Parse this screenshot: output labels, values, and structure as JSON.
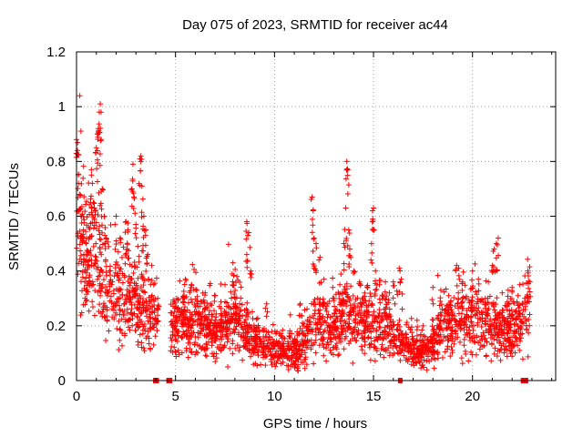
{
  "chart_data": {
    "type": "scatter",
    "title": "Day 075 of 2023, SRMTID for receiver ac44",
    "xlabel": "GPS time / hours",
    "ylabel": "SRMTID / TECUs",
    "xlim": [
      0,
      24.2
    ],
    "ylim": [
      0,
      1.2
    ],
    "x_ticks": [
      0,
      5,
      10,
      15,
      20
    ],
    "x_tick_labels": [
      "0",
      "5",
      "10",
      "15",
      "20"
    ],
    "y_ticks": [
      0,
      0.2,
      0.4,
      0.6,
      0.8,
      1.0,
      1.2
    ],
    "y_tick_labels": [
      "0",
      "0.2",
      "0.4",
      "0.6",
      "0.8",
      "1",
      "1.2"
    ],
    "grid": true,
    "marker": "plus",
    "color": "#ff0000",
    "series": [
      {
        "name": "SRMTID",
        "profile": [
          [
            0.0,
            0.62
          ],
          [
            0.3,
            0.52
          ],
          [
            0.6,
            0.42
          ],
          [
            1.0,
            0.45
          ],
          [
            1.4,
            0.35
          ],
          [
            2.0,
            0.3
          ],
          [
            2.5,
            0.32
          ],
          [
            3.0,
            0.3
          ],
          [
            3.5,
            0.24
          ],
          [
            4.0,
            0.2
          ],
          [
            4.8,
            0.2
          ],
          [
            5.5,
            0.22
          ],
          [
            6.0,
            0.2
          ],
          [
            6.5,
            0.19
          ],
          [
            7.0,
            0.18
          ],
          [
            7.5,
            0.2
          ],
          [
            8.0,
            0.22
          ],
          [
            8.5,
            0.18
          ],
          [
            9.0,
            0.15
          ],
          [
            9.5,
            0.13
          ],
          [
            10.0,
            0.12
          ],
          [
            10.5,
            0.11
          ],
          [
            11.0,
            0.1
          ],
          [
            11.5,
            0.13
          ],
          [
            12.0,
            0.22
          ],
          [
            12.5,
            0.18
          ],
          [
            13.0,
            0.17
          ],
          [
            13.5,
            0.26
          ],
          [
            14.0,
            0.21
          ],
          [
            14.5,
            0.22
          ],
          [
            15.0,
            0.19
          ],
          [
            15.5,
            0.22
          ],
          [
            16.0,
            0.18
          ],
          [
            16.5,
            0.14
          ],
          [
            17.0,
            0.11
          ],
          [
            17.5,
            0.1
          ],
          [
            18.0,
            0.13
          ],
          [
            18.5,
            0.2
          ],
          [
            19.0,
            0.2
          ],
          [
            19.5,
            0.22
          ],
          [
            20.0,
            0.25
          ],
          [
            20.5,
            0.18
          ],
          [
            21.0,
            0.2
          ],
          [
            21.5,
            0.18
          ],
          [
            22.0,
            0.18
          ],
          [
            22.5,
            0.2
          ],
          [
            22.8,
            0.28
          ]
        ],
        "peaks": [
          [
            0.0,
            0.88
          ],
          [
            0.05,
            0.84
          ],
          [
            0.1,
            0.72
          ],
          [
            0.15,
            0.68
          ],
          [
            0.25,
            0.6
          ],
          [
            0.35,
            0.55
          ],
          [
            0.5,
            0.52
          ],
          [
            0.75,
            0.77
          ],
          [
            0.8,
            0.72
          ],
          [
            0.85,
            0.65
          ],
          [
            0.9,
            0.63
          ],
          [
            1.0,
            0.85
          ],
          [
            1.05,
            0.9
          ],
          [
            1.1,
            0.92
          ],
          [
            1.15,
            0.98
          ],
          [
            1.2,
            1.01
          ],
          [
            1.25,
            0.88
          ],
          [
            1.3,
            0.7
          ],
          [
            1.4,
            0.6
          ],
          [
            1.5,
            0.52
          ],
          [
            2.0,
            0.6
          ],
          [
            2.2,
            0.52
          ],
          [
            2.5,
            0.58
          ],
          [
            2.6,
            0.55
          ],
          [
            2.8,
            0.7
          ],
          [
            2.85,
            0.79
          ],
          [
            2.9,
            0.67
          ],
          [
            3.0,
            0.57
          ],
          [
            3.1,
            0.49
          ],
          [
            3.2,
            0.81
          ],
          [
            3.25,
            0.82
          ],
          [
            3.3,
            0.71
          ],
          [
            3.4,
            0.6
          ],
          [
            3.5,
            0.55
          ],
          [
            3.6,
            0.46
          ],
          [
            3.8,
            0.42
          ],
          [
            3.9,
            0.35
          ],
          [
            4.1,
            0.3
          ],
          [
            5.5,
            0.37
          ],
          [
            5.8,
            0.35
          ],
          [
            6.5,
            0.32
          ],
          [
            7.0,
            0.31
          ],
          [
            7.5,
            0.35
          ],
          [
            7.9,
            0.43
          ],
          [
            8.1,
            0.38
          ],
          [
            8.6,
            0.58
          ],
          [
            8.7,
            0.54
          ],
          [
            8.6,
            0.46
          ],
          [
            8.8,
            0.4
          ],
          [
            9.6,
            0.28
          ],
          [
            10.8,
            0.24
          ],
          [
            11.3,
            0.28
          ],
          [
            11.9,
            0.67
          ],
          [
            11.95,
            0.62
          ],
          [
            12.0,
            0.52
          ],
          [
            12.1,
            0.5
          ],
          [
            12.3,
            0.45
          ],
          [
            12.5,
            0.37
          ],
          [
            13.0,
            0.3
          ],
          [
            13.3,
            0.35
          ],
          [
            13.5,
            0.5
          ],
          [
            13.6,
            0.63
          ],
          [
            13.65,
            0.8
          ],
          [
            13.7,
            0.77
          ],
          [
            13.75,
            0.55
          ],
          [
            13.8,
            0.48
          ],
          [
            14.0,
            0.4
          ],
          [
            14.3,
            0.36
          ],
          [
            14.6,
            0.29
          ],
          [
            14.9,
            0.5
          ],
          [
            14.95,
            0.62
          ],
          [
            15.0,
            0.63
          ],
          [
            15.1,
            0.4
          ],
          [
            15.3,
            0.35
          ],
          [
            15.6,
            0.36
          ],
          [
            15.8,
            0.32
          ],
          [
            16.0,
            0.36
          ],
          [
            16.3,
            0.41
          ],
          [
            16.4,
            0.37
          ],
          [
            17.2,
            0.22
          ],
          [
            17.5,
            0.2
          ],
          [
            18.0,
            0.34
          ],
          [
            18.4,
            0.33
          ],
          [
            18.8,
            0.31
          ],
          [
            19.2,
            0.42
          ],
          [
            19.3,
            0.41
          ],
          [
            19.5,
            0.36
          ],
          [
            20.0,
            0.4
          ],
          [
            20.3,
            0.37
          ],
          [
            20.8,
            0.36
          ],
          [
            21.0,
            0.42
          ],
          [
            21.1,
            0.48
          ],
          [
            21.2,
            0.5
          ],
          [
            21.3,
            0.52
          ],
          [
            21.5,
            0.32
          ],
          [
            21.8,
            0.33
          ],
          [
            22.0,
            0.34
          ],
          [
            22.3,
            0.31
          ],
          [
            22.8,
            0.4
          ],
          [
            22.9,
            0.36
          ]
        ],
        "zero_points": [
          3.98,
          4.05,
          4.65,
          4.72,
          16.35,
          22.55,
          22.7
        ]
      }
    ]
  }
}
